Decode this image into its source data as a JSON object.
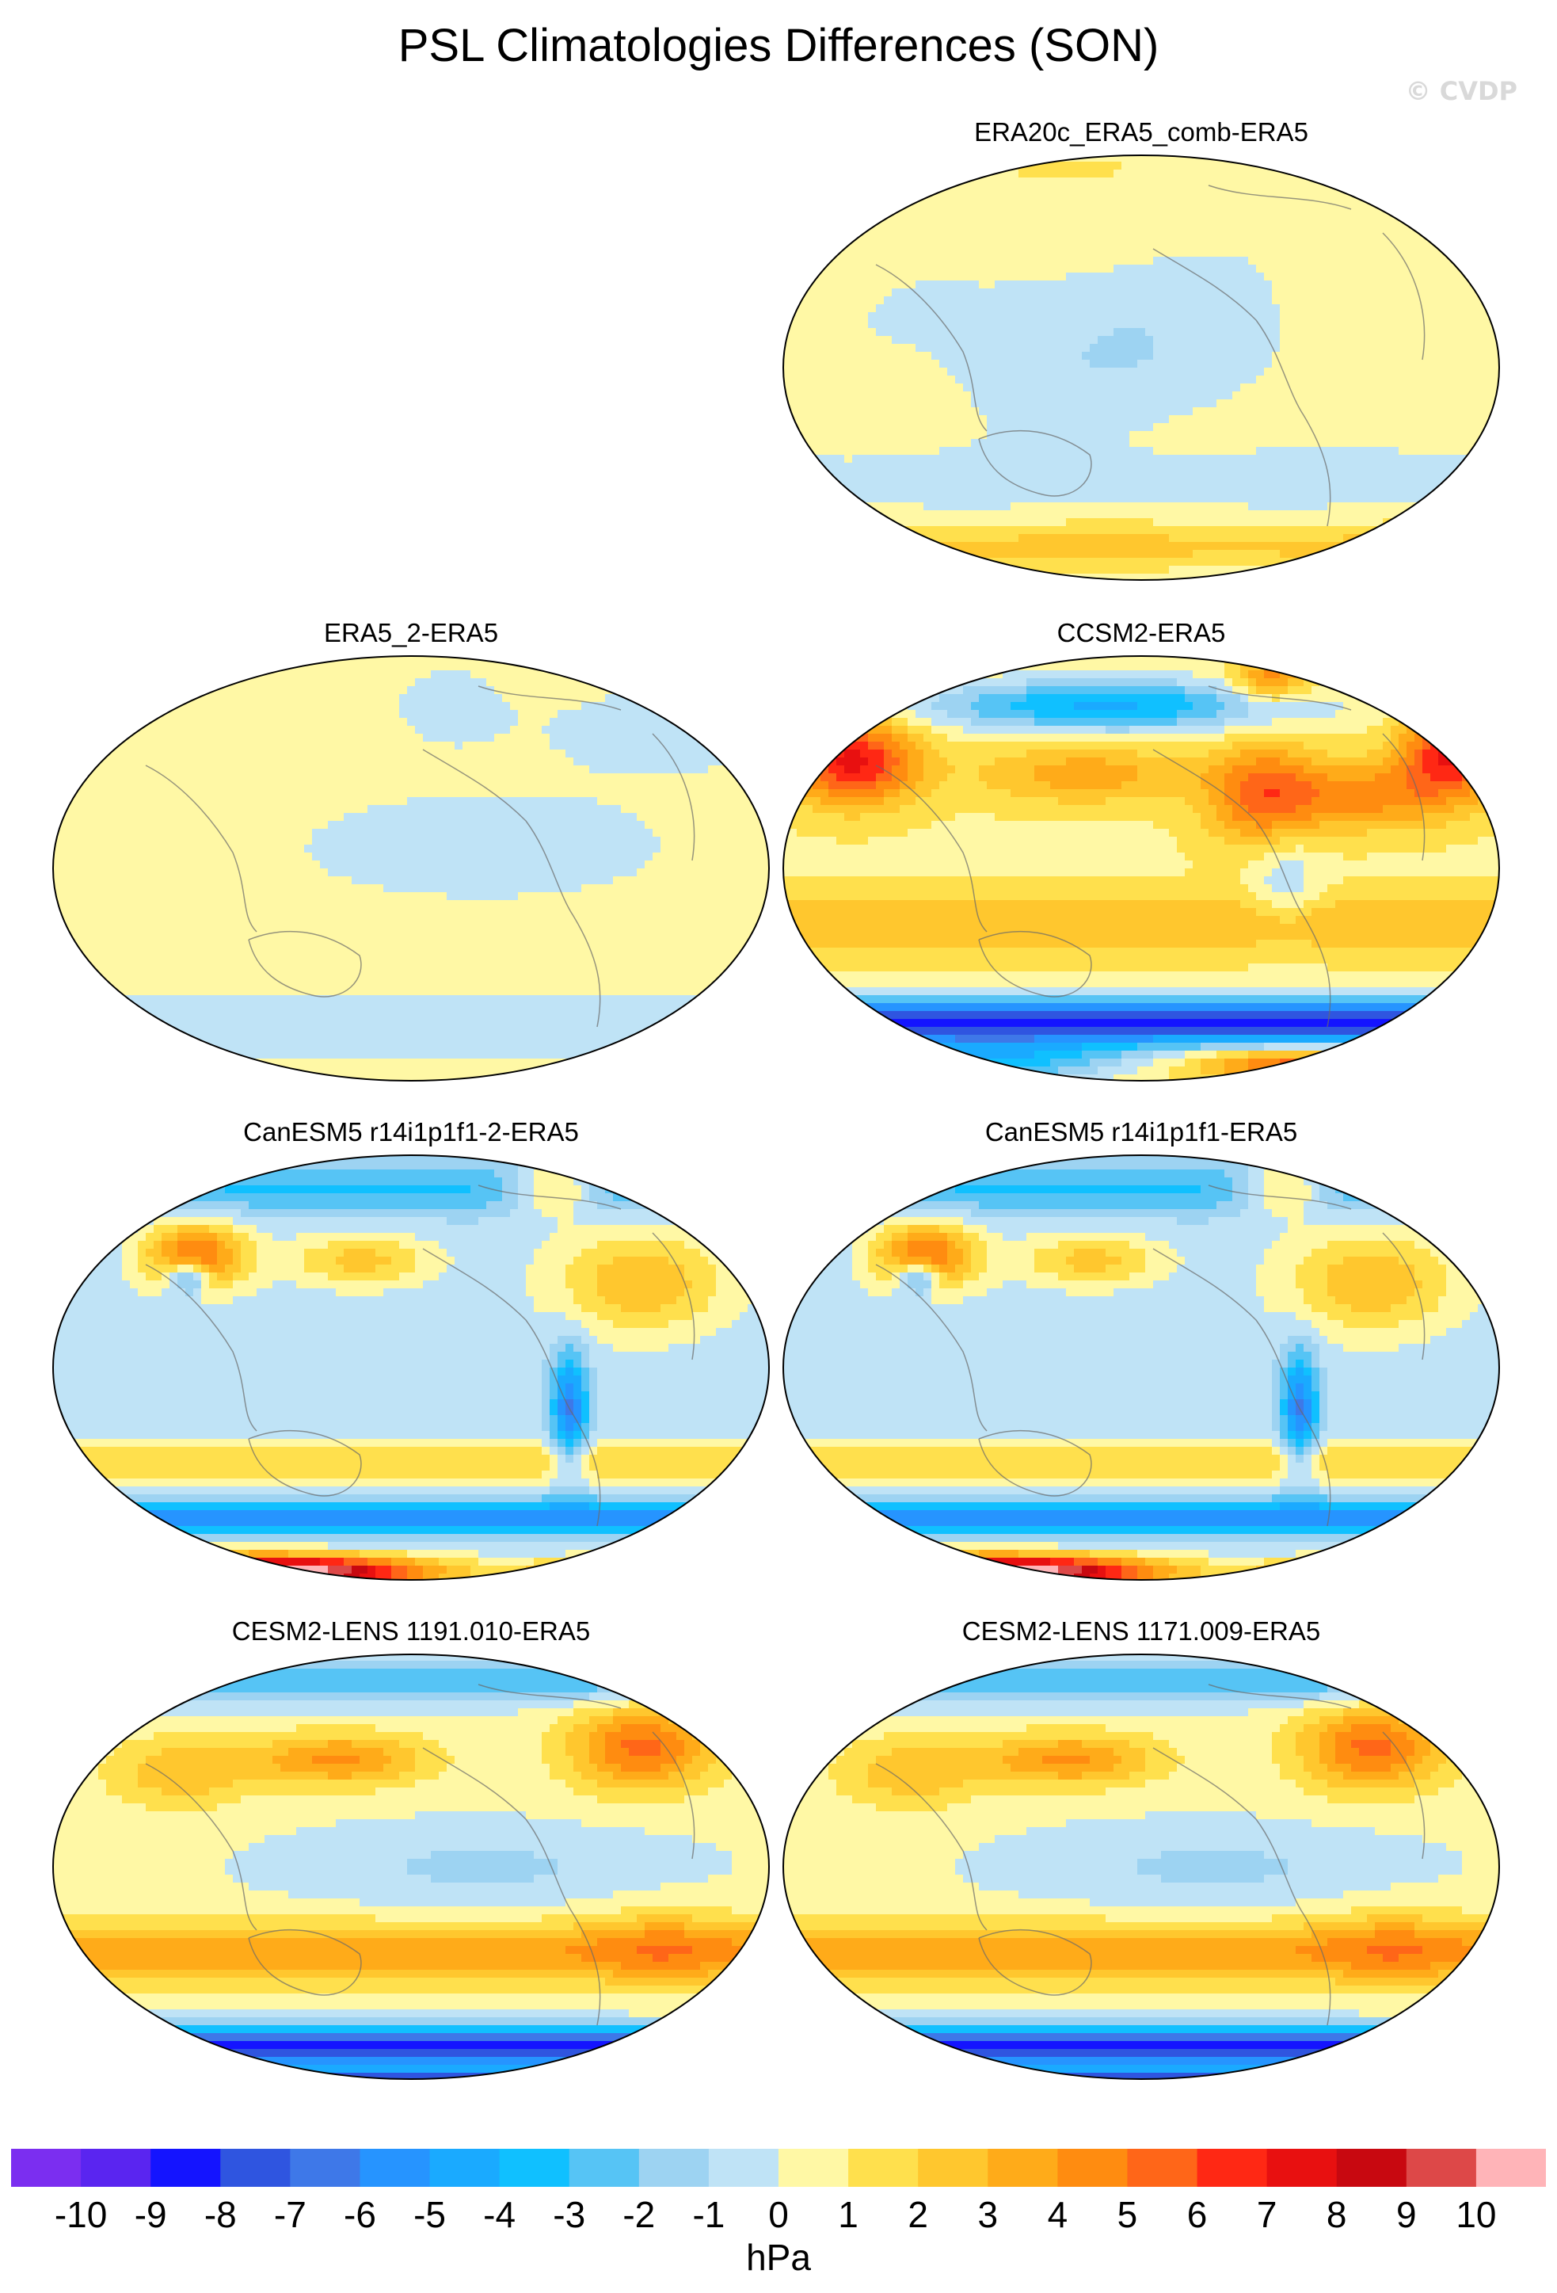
{
  "figure": {
    "title": "PSL Climatologies Differences (SON)",
    "watermark": "© CVDP"
  },
  "panels": [
    {
      "title": "ERA20c_ERA5_comb-ERA5",
      "pattern": "weak-positive"
    },
    {
      "title": "ERA5_2-ERA5",
      "pattern": "near-zero"
    },
    {
      "title": "CCSM2-ERA5",
      "pattern": "strong-dipole"
    },
    {
      "title": "CanESM5 r14i1p1f1-2-ERA5",
      "pattern": "canesm"
    },
    {
      "title": "CanESM5 r14i1p1f1-ERA5",
      "pattern": "canesm"
    },
    {
      "title": "CESM2-LENS 1191.010-ERA5",
      "pattern": "cesm2"
    },
    {
      "title": "CESM2-LENS 1171.009-ERA5",
      "pattern": "cesm2"
    }
  ],
  "colorbar": {
    "units": "hPa",
    "labels": [
      "-10",
      "-9",
      "-8",
      "-7",
      "-6",
      "-5",
      "-4",
      "-3",
      "-2",
      "-1",
      "0",
      "1",
      "2",
      "3",
      "4",
      "5",
      "6",
      "7",
      "8",
      "9",
      "10"
    ],
    "colors": [
      "#7b2ef0",
      "#5a25f0",
      "#1414ff",
      "#2f55e0",
      "#3e78e8",
      "#2694ff",
      "#1aaaff",
      "#10c0ff",
      "#56c4f5",
      "#9dd3f2",
      "#bfe3f6",
      "#fff8a5",
      "#ffe04d",
      "#ffc72e",
      "#ffab19",
      "#ff8c10",
      "#ff6618",
      "#ff2814",
      "#e81010",
      "#c80810",
      "#dd4848",
      "#ffb4b8"
    ]
  },
  "chart_data": {
    "type": "heatmap",
    "title": "PSL Climatologies Differences (SON)",
    "units": "hPa",
    "projection": "Robinson (global map, Pacific-centered)",
    "contour_levels": [
      -10,
      -9,
      -8,
      -7,
      -6,
      -5,
      -4,
      -3,
      -2,
      -1,
      0,
      1,
      2,
      3,
      4,
      5,
      6,
      7,
      8,
      9,
      10
    ],
    "panels": [
      "ERA20c_ERA5_comb-ERA5",
      "ERA5_2-ERA5",
      "CCSM2-ERA5",
      "CanESM5 r14i1p1f1-2-ERA5",
      "CanESM5 r14i1p1f1-ERA5",
      "CESM2-LENS 1191.010-ERA5",
      "CESM2-LENS 1171.009-ERA5"
    ]
  }
}
